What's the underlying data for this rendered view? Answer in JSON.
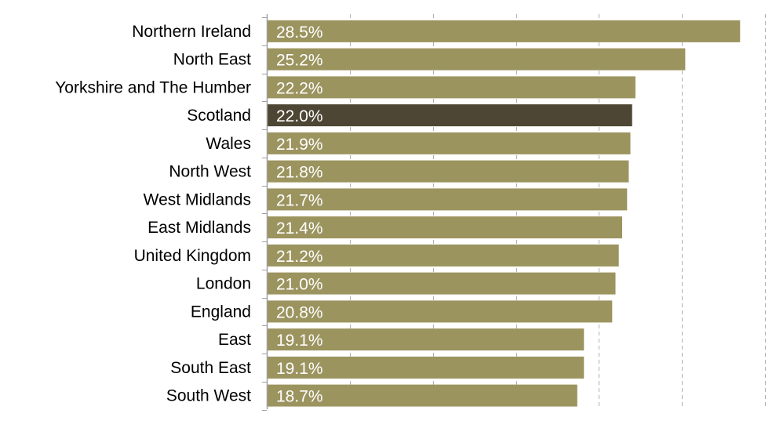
{
  "chart_data": {
    "type": "bar",
    "orientation": "horizontal",
    "categories": [
      "Northern Ireland",
      "North East",
      "Yorkshire and The Humber",
      "Scotland",
      "Wales",
      "North West",
      "West Midlands",
      "East Midlands",
      "United Kingdom",
      "London",
      "England",
      "East",
      "South East",
      "South West"
    ],
    "values": [
      28.5,
      25.2,
      22.2,
      22.0,
      21.9,
      21.8,
      21.7,
      21.4,
      21.2,
      21.0,
      20.8,
      19.1,
      19.1,
      18.7
    ],
    "data_labels": [
      "28.5%",
      "25.2%",
      "22.2%",
      "22.0%",
      "21.9%",
      "21.8%",
      "21.7%",
      "21.4%",
      "21.2%",
      "21.0%",
      "20.8%",
      "19.1%",
      "19.1%",
      "18.7%"
    ],
    "highlight_category": "Scotland",
    "xlim": [
      0,
      30
    ],
    "x_gridlines": [
      5,
      10,
      15,
      20,
      25,
      30
    ],
    "grid": "vertical dashed",
    "axis_tick_labels_shown": false,
    "title": "",
    "xlabel": "",
    "ylabel": "",
    "colors": {
      "bar": "#9c945f",
      "highlight": "#4d4634",
      "grid": "#b0b0b0",
      "axis": "#a0a0a0",
      "label_text": "#000000",
      "value_text": "#ffffff"
    }
  }
}
